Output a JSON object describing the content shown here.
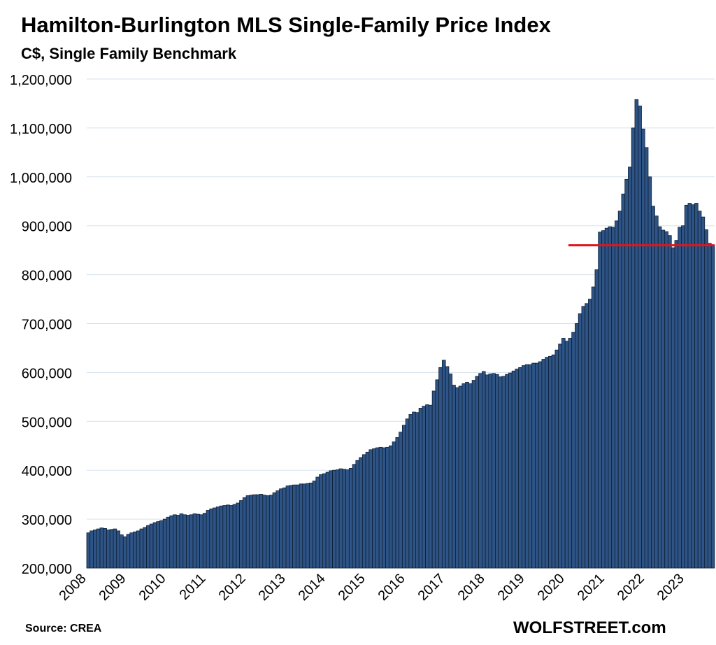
{
  "chart_data": {
    "type": "bar",
    "title": "Hamilton-Burlington MLS Single-Family Price Index",
    "subtitle": "C$, Single Family Benchmark",
    "xlabel": "",
    "ylabel": "",
    "ylim": [
      200000,
      1200000
    ],
    "y_ticks": [
      200000,
      300000,
      400000,
      500000,
      600000,
      700000,
      800000,
      900000,
      1000000,
      1100000,
      1200000
    ],
    "y_tick_labels": [
      "200,000",
      "300,000",
      "400,000",
      "500,000",
      "600,000",
      "700,000",
      "800,000",
      "900,000",
      "1,000,000",
      "1,100,000",
      "1,200,000"
    ],
    "x_tick_labels": [
      "2008",
      "2009",
      "2010",
      "2011",
      "2012",
      "2013",
      "2014",
      "2015",
      "2016",
      "2017",
      "2018",
      "2019",
      "2020",
      "2021",
      "2022",
      "2023"
    ],
    "grid": true,
    "bar_color": "#2e5486",
    "bar_edge_color": "#0d1e33",
    "reference_line": {
      "value": 860000,
      "start": "2020-02",
      "color": "#e0141c"
    },
    "start_month": "2008-01",
    "values": [
      272000,
      276000,
      278000,
      280000,
      282000,
      281000,
      278000,
      279000,
      280000,
      276000,
      268000,
      264000,
      269000,
      272000,
      274000,
      276000,
      280000,
      283000,
      287000,
      290000,
      293000,
      295000,
      297000,
      300000,
      304000,
      307000,
      309000,
      308000,
      311000,
      309000,
      308000,
      309000,
      311000,
      310000,
      309000,
      312000,
      318000,
      321000,
      323000,
      325000,
      327000,
      328000,
      329000,
      328000,
      330000,
      333000,
      338000,
      344000,
      348000,
      349000,
      350000,
      350000,
      351000,
      349000,
      348000,
      349000,
      354000,
      358000,
      362000,
      364000,
      368000,
      369000,
      370000,
      370000,
      372000,
      372000,
      373000,
      374000,
      378000,
      386000,
      391000,
      393000,
      396000,
      399000,
      400000,
      401000,
      403000,
      402000,
      401000,
      404000,
      412000,
      420000,
      426000,
      432000,
      437000,
      442000,
      444000,
      446000,
      447000,
      446000,
      447000,
      450000,
      458000,
      467000,
      478000,
      492000,
      505000,
      514000,
      519000,
      518000,
      527000,
      531000,
      534000,
      533000,
      562000,
      585000,
      610000,
      625000,
      612000,
      597000,
      574000,
      569000,
      572000,
      577000,
      580000,
      577000,
      584000,
      592000,
      598000,
      602000,
      595000,
      597000,
      598000,
      596000,
      591000,
      592000,
      596000,
      599000,
      603000,
      607000,
      610000,
      614000,
      616000,
      616000,
      619000,
      619000,
      622000,
      627000,
      631000,
      633000,
      636000,
      646000,
      658000,
      670000,
      664000,
      670000,
      682000,
      700000,
      720000,
      735000,
      741000,
      750000,
      775000,
      810000,
      887000,
      890000,
      895000,
      898000,
      897000,
      910000,
      930000,
      965000,
      995000,
      1020000,
      1100000,
      1158000,
      1145000,
      1098000,
      1060000,
      1000000,
      940000,
      920000,
      898000,
      891000,
      888000,
      880000,
      855000,
      870000,
      897000,
      900000,
      942000,
      946000,
      943000,
      946000,
      930000,
      918000,
      892000,
      864000,
      860000
    ]
  },
  "footer": {
    "source": "Source: CREA",
    "brand": "WOLFSTREET.com"
  }
}
